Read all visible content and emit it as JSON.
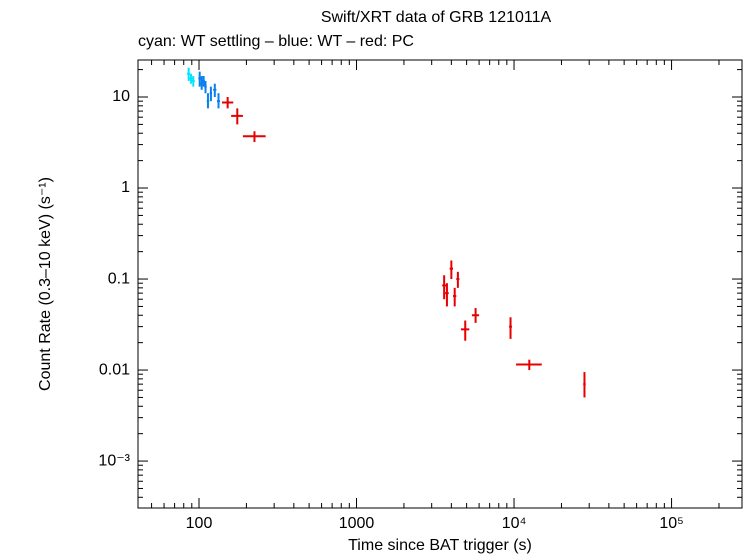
{
  "chart_data": {
    "type": "scatter",
    "title": "Swift/XRT data of GRB 121011A",
    "subtitle": "cyan: WT settling – blue: WT – red: PC",
    "x_label": "Time since BAT trigger (s)",
    "y_label": "Count Rate (0.3–10 keV) (s⁻¹)",
    "x_log": true,
    "y_log": true,
    "xlim": [
      41,
      280000
    ],
    "ylim": [
      0.000305,
      25.5
    ],
    "xticks": [
      100,
      1000,
      {
        "value": 10000,
        "label": "10⁴"
      },
      {
        "value": 100000,
        "label": "10⁵"
      }
    ],
    "yticks": [
      {
        "value": 0.001,
        "label": "10⁻³"
      },
      0.01,
      0.1,
      1,
      10
    ],
    "series": [
      {
        "name": "WT settling",
        "color": "#00e5ff",
        "x": [
          86,
          89,
          92
        ],
        "x_low": [
          84,
          87,
          90
        ],
        "x_high": [
          88,
          91,
          94
        ],
        "values": [
          18,
          16,
          15
        ],
        "y_low": [
          15,
          14,
          13
        ],
        "y_high": [
          21,
          18,
          17
        ]
      },
      {
        "name": "WT",
        "color": "#0a7ff0",
        "x": [
          101,
          104,
          107,
          110,
          114,
          119,
          126,
          133
        ],
        "x_low": [
          99,
          102,
          105,
          108,
          112,
          117,
          123,
          130
        ],
        "x_high": [
          103,
          106,
          109,
          112,
          116,
          121,
          129,
          136
        ],
        "values": [
          16,
          14,
          15,
          13,
          9,
          11,
          12,
          9
        ],
        "y_low": [
          13,
          12,
          13,
          11,
          7.5,
          9,
          10,
          7.5
        ],
        "y_high": [
          19,
          17,
          17,
          15,
          11,
          13,
          14,
          11
        ]
      },
      {
        "name": "PC",
        "color": "#e60000",
        "x": [
          152,
          175,
          225,
          3600,
          3750,
          4000,
          4200,
          4400,
          4900,
          5700,
          9500,
          12500,
          28000
        ],
        "x_low": [
          140,
          160,
          190,
          3500,
          3650,
          3900,
          4100,
          4300,
          4600,
          5400,
          9300,
          10300,
          27500
        ],
        "x_high": [
          165,
          190,
          265,
          3700,
          3850,
          4100,
          4300,
          4500,
          5200,
          6000,
          9700,
          15000,
          28500
        ],
        "values": [
          8.7,
          6.2,
          3.7,
          0.085,
          0.07,
          0.13,
          0.065,
          0.1,
          0.028,
          0.04,
          0.03,
          0.0115,
          0.007
        ],
        "y_low": [
          7.5,
          5,
          3.2,
          0.06,
          0.05,
          0.1,
          0.05,
          0.08,
          0.021,
          0.033,
          0.022,
          0.01,
          0.005
        ],
        "y_high": [
          10,
          7.5,
          4.2,
          0.11,
          0.09,
          0.16,
          0.08,
          0.12,
          0.035,
          0.048,
          0.038,
          0.013,
          0.0095
        ]
      }
    ]
  }
}
